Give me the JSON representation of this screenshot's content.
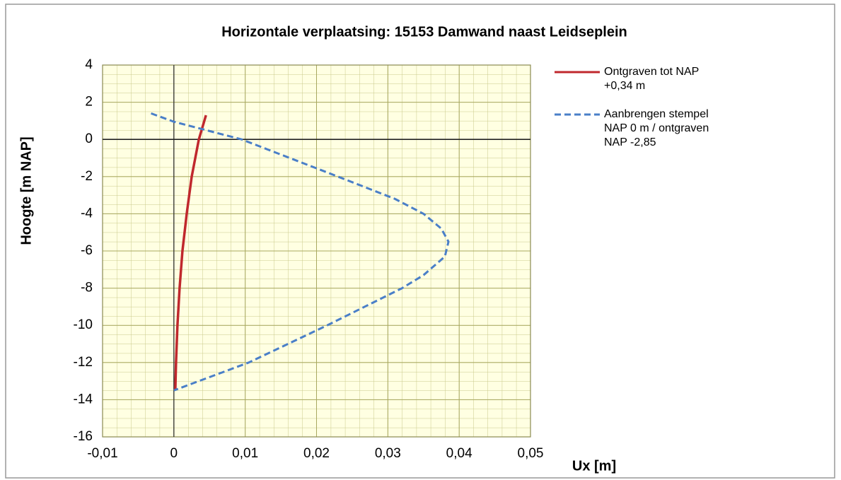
{
  "chart_data": {
    "type": "line",
    "title": "Horizontale verplaatsing: 15153 Damwand naast Leidseplein",
    "x_label": "Ux [m]",
    "y_label": "Hoogte [m NAP]",
    "xlim": [
      -0.01,
      0.05
    ],
    "xticks": [
      {
        "value": -0.01,
        "label": "-0,01"
      },
      0,
      {
        "value": 0.01,
        "label": "0,01"
      },
      {
        "value": 0.02,
        "label": "0,02"
      },
      {
        "value": 0.03,
        "label": "0,03"
      },
      {
        "value": 0.04,
        "label": "0,04"
      },
      {
        "value": 0.05,
        "label": "0,05"
      }
    ],
    "ylim": [
      -16,
      4
    ],
    "yticks": [
      -16,
      -14,
      -12,
      -10,
      -8,
      -6,
      -4,
      -2,
      0,
      2,
      4
    ],
    "grid": true,
    "legend": "right",
    "series": [
      {
        "name": "Ontgraven tot NAP +0,34 m",
        "color": "#c0282d",
        "dash": false,
        "x": [
          0.0045,
          0.0035,
          0.0025,
          0.0018,
          0.0012,
          0.0008,
          0.0005,
          0.0003,
          0.0002
        ],
        "values": [
          1.3,
          0,
          -2,
          -4,
          -6,
          -8,
          -10,
          -12,
          -13.5
        ]
      },
      {
        "name": "Aanbrengen stempel NAP 0 m / ontgraven NAP -2,85",
        "color": "#4a7fc8",
        "dash": true,
        "x": [
          -0.0032,
          0,
          0.0095,
          0.023,
          0.031,
          0.035,
          0.0375,
          0.0385,
          0.038,
          0.035,
          0.032,
          0.0215,
          0.0105,
          0
        ],
        "values": [
          1.4,
          0.95,
          0,
          -2,
          -3.2,
          -4,
          -4.8,
          -5.5,
          -6.3,
          -7.3,
          -8,
          -10,
          -12,
          -13.5
        ]
      }
    ]
  }
}
